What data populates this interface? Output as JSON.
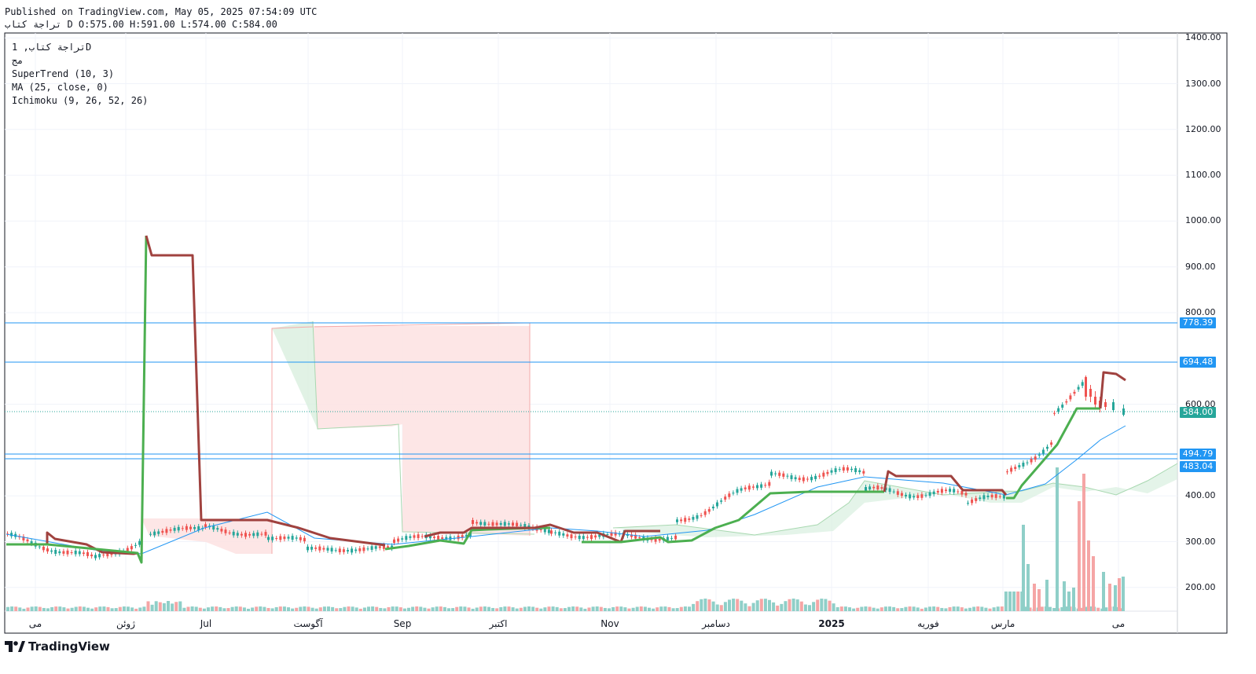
{
  "header": {
    "published": "Published on TradingView.com, May 05, 2025 07:54:09 UTC",
    "symbol": "تراجة كتاب",
    "ohlc": "D O:575.00 H:591.00 L:574.00 C:584.00"
  },
  "legend": {
    "line1": "تراجة كتاب, 1D",
    "line2": "مج",
    "supertrend": "SuperTrend (10, 3)",
    "ma": "MA (25, close, 0)",
    "ichimoku": "Ichimoku (9, 26, 52, 26)"
  },
  "y_axis": {
    "ticks": [
      "1400.00",
      "1300.00",
      "1200.00",
      "1100.00",
      "1000.00",
      "900.00",
      "800.00",
      "600.00",
      "400.00",
      "300.00",
      "200.00"
    ]
  },
  "x_axis": {
    "labels": [
      "مى",
      "ژوئن",
      "Jul",
      "آگوست",
      "Sep",
      "اكتبر",
      "Nov",
      "دسامبر",
      "2025",
      "فوريه",
      "مارس",
      "مى"
    ]
  },
  "price_labels": [
    {
      "text": "778.39",
      "color": "#2196f3"
    },
    {
      "text": "694.48",
      "color": "#2196f3"
    },
    {
      "text": "584.00",
      "color": "#26a69a"
    },
    {
      "text": "494.79",
      "color": "#2196f3"
    },
    {
      "text": "483.04",
      "color": "#2196f3"
    }
  ],
  "colors": {
    "up": "#26a69a",
    "down": "#ef5350",
    "supertrend_up": "#4caf50",
    "supertrend_down": "#a0423f",
    "ma": "#2196f3",
    "hline": "#2196f3"
  },
  "footer": {
    "brand": "TradingView",
    "logo": "tradingview-logo"
  },
  "chart_data": {
    "type": "candlestick",
    "title": "تراجة كتاب, 1D",
    "last": {
      "open": 575.0,
      "high": 591.0,
      "low": 574.0,
      "close": 584.0
    },
    "horizontal_levels": [
      778.39,
      694.48,
      494.79,
      483.04
    ],
    "y_range": [
      150,
      1400
    ],
    "supertrend_points": [
      {
        "x": "May 2024",
        "y": 295
      },
      {
        "x": "late May",
        "y": 320
      },
      {
        "x": "early Jun",
        "y": 280
      },
      {
        "x": "mid Jun",
        "y": 965
      },
      {
        "x": "mid Jun",
        "y": 925
      },
      {
        "x": "late Jun",
        "y": 925
      },
      {
        "x": "early Jul",
        "y": 350
      },
      {
        "x": "late Jul",
        "y": 350
      },
      {
        "x": "Aug",
        "y": 300
      },
      {
        "x": "late Aug",
        "y": 295
      },
      {
        "x": "Sep",
        "y": 300
      },
      {
        "x": "Oct",
        "y": 325
      },
      {
        "x": "Nov",
        "y": 300
      },
      {
        "x": "Dec",
        "y": 390
      },
      {
        "x": "Jan 2025",
        "y": 410
      },
      {
        "x": "Feb",
        "y": 450
      },
      {
        "x": "Mar",
        "y": 420
      },
      {
        "x": "Apr",
        "y": 595
      },
      {
        "x": "May",
        "y": 660
      }
    ]
  }
}
